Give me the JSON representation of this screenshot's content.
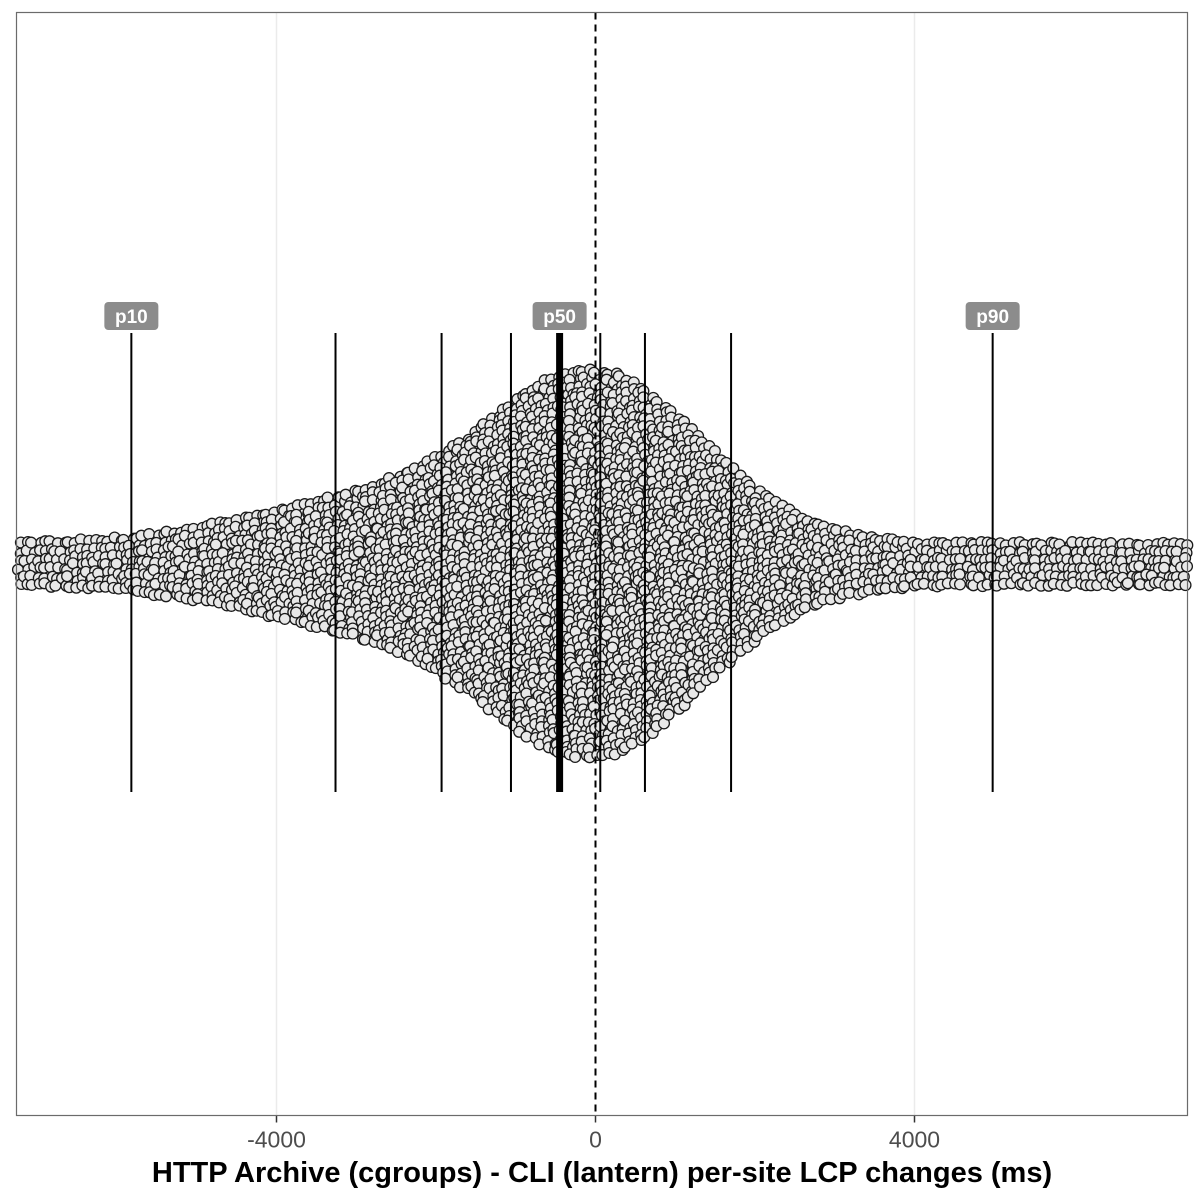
{
  "chart_data": {
    "type": "scatter",
    "subtype": "beeswarm",
    "title": "",
    "xlabel": "HTTP Archive (cgroups) - CLI (lantern) per-site LCP changes (ms)",
    "ylabel": "",
    "xlim": [
      -7300,
      7300
    ],
    "x_ticks": [
      -4000,
      0,
      4000
    ],
    "x_tick_labels": [
      "-4000",
      "0",
      "4000"
    ],
    "grid": "vertical major gridlines only",
    "reference_line": {
      "x": 0,
      "style": "dashed"
    },
    "percentile_lines": [
      {
        "name": "p10",
        "x": -5820,
        "labeled": true
      },
      {
        "name": "p20",
        "x": -3260,
        "labeled": false
      },
      {
        "name": "p30",
        "x": -1930,
        "labeled": false
      },
      {
        "name": "p40",
        "x": -1060,
        "labeled": false
      },
      {
        "name": "p50",
        "x": -450,
        "labeled": true
      },
      {
        "name": "p60",
        "x": 60,
        "labeled": false
      },
      {
        "name": "p70",
        "x": 620,
        "labeled": false
      },
      {
        "name": "p80",
        "x": 1700,
        "labeled": false
      },
      {
        "name": "p90",
        "x": 4980,
        "labeled": true
      }
    ],
    "distribution_note": "each point is one site; density peaks near 0 ms",
    "point_fill": "#e8e8e8",
    "point_stroke": "#1a1a1a"
  }
}
